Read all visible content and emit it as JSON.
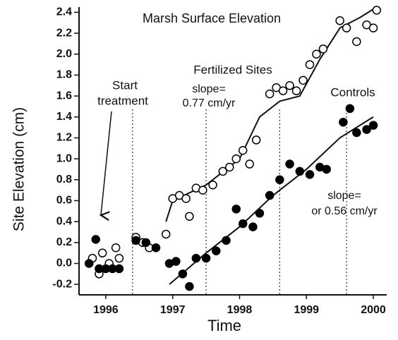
{
  "chart_data": {
    "type": "scatter",
    "title": "Marsh Surface Elevation",
    "xlabel": "Time",
    "ylabel": "Site Elevation (cm)",
    "xlim": [
      1995.6,
      2000.2
    ],
    "ylim": [
      -0.3,
      2.45
    ],
    "xticks": [
      1996,
      1997,
      1998,
      1999,
      2000
    ],
    "yticks": [
      -0.2,
      {
        "value": 0,
        "label": "0.0"
      },
      0.2,
      0.4,
      0.6,
      0.8,
      {
        "value": 1,
        "label": "1.0"
      },
      1.2,
      1.4,
      1.6,
      1.8,
      {
        "value": 2,
        "label": "2.0"
      },
      2.2,
      2.4
    ],
    "vlines": [
      1996.4,
      1997.5,
      1998.6,
      1999.6
    ],
    "annotations": [
      "Start",
      "treatment",
      "Fertilized Sites",
      "slope=",
      "0.77 cm/yr",
      "Controls",
      "slope=",
      "or 0.56 cm/yr"
    ],
    "series": [
      {
        "name": "Fertilized Sites",
        "marker": "open",
        "color": "#000000",
        "x": [
          1995.8,
          1995.9,
          1995.95,
          1996.05,
          1996.15,
          1996.2,
          1996.45,
          1996.55,
          1996.65,
          1996.9,
          1997.0,
          1997.1,
          1997.2,
          1997.25,
          1997.35,
          1997.45,
          1997.6,
          1997.75,
          1997.85,
          1997.95,
          1998.05,
          1998.15,
          1998.25,
          1998.45,
          1998.55,
          1998.65,
          1998.75,
          1998.85,
          1998.95,
          1999.05,
          1999.15,
          1999.25,
          1999.5,
          1999.6,
          1999.75,
          1999.9,
          2000.0,
          2000.05
        ],
        "values": [
          0.05,
          -0.1,
          0.1,
          0.0,
          0.15,
          0.05,
          0.25,
          0.2,
          0.15,
          0.28,
          0.62,
          0.65,
          0.62,
          0.45,
          0.72,
          0.7,
          0.75,
          0.88,
          0.92,
          1.0,
          1.08,
          0.95,
          1.18,
          1.62,
          1.68,
          1.65,
          1.7,
          1.65,
          1.75,
          1.9,
          2.0,
          2.05,
          2.32,
          2.25,
          2.12,
          2.28,
          2.25,
          2.42
        ]
      },
      {
        "name": "Controls",
        "marker": "filled",
        "color": "#000000",
        "x": [
          1995.75,
          1995.85,
          1995.9,
          1996.0,
          1996.1,
          1996.2,
          1996.45,
          1996.6,
          1996.75,
          1996.95,
          1997.05,
          1997.15,
          1997.25,
          1997.35,
          1997.5,
          1997.65,
          1997.8,
          1997.95,
          1998.05,
          1998.2,
          1998.3,
          1998.45,
          1998.6,
          1998.75,
          1998.9,
          1999.05,
          1999.2,
          1999.3,
          1999.55,
          1999.65,
          1999.75,
          1999.9,
          2000.0
        ],
        "values": [
          0.0,
          0.23,
          -0.05,
          -0.05,
          -0.05,
          -0.05,
          0.22,
          0.2,
          0.15,
          0.0,
          0.02,
          -0.1,
          -0.22,
          0.05,
          0.05,
          0.12,
          0.22,
          0.52,
          0.38,
          0.35,
          0.48,
          0.65,
          0.8,
          0.95,
          0.88,
          0.85,
          0.92,
          0.9,
          1.35,
          1.48,
          1.25,
          1.28,
          1.32
        ]
      }
    ],
    "fits": [
      {
        "x": [
          1996.9,
          1997.0,
          1997.5,
          1998.0,
          1998.3,
          1998.6,
          1998.9,
          1999.2,
          1999.5,
          1999.8,
          2000.05
        ],
        "values": [
          0.4,
          0.6,
          0.75,
          1.0,
          1.4,
          1.55,
          1.6,
          1.95,
          2.25,
          2.35,
          2.45
        ]
      },
      {
        "x": [
          1996.95,
          1997.5,
          1998.0,
          1998.5,
          1999.0,
          1999.5,
          2000.0
        ],
        "values": [
          -0.2,
          0.1,
          0.35,
          0.65,
          0.9,
          1.2,
          1.4
        ]
      }
    ]
  }
}
